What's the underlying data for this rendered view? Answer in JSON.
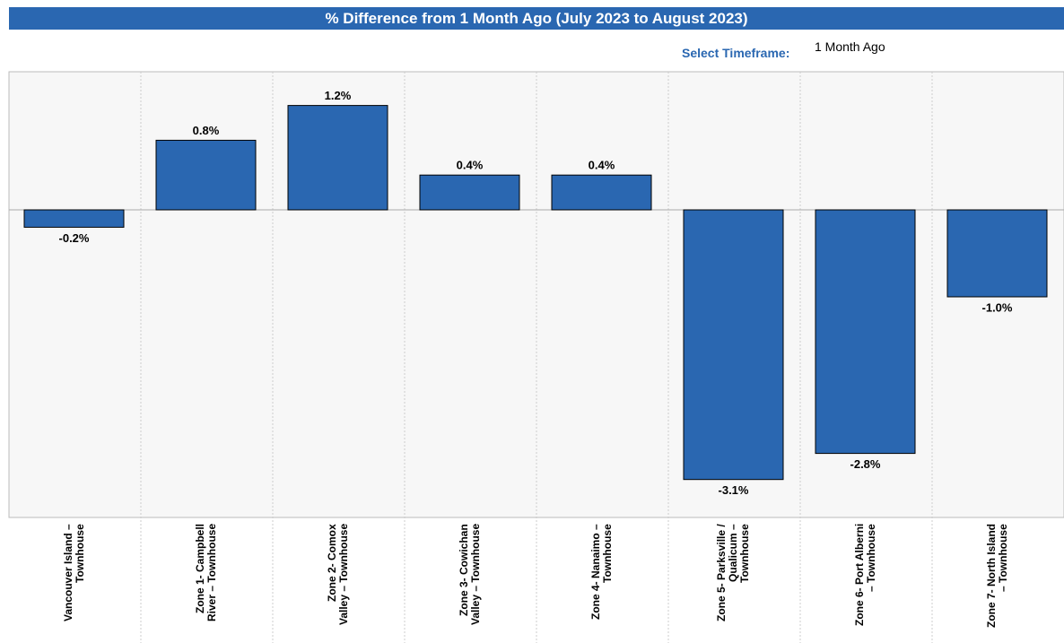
{
  "chart_data": {
    "type": "bar",
    "title": "% Difference from 1 Month Ago (July 2023 to August 2023)",
    "control_label": "Select Timeframe:",
    "control_value": "1 Month Ago",
    "categories": [
      "Vancouver Island – Townhouse",
      "Zone 1- Campbell River – Townhouse",
      "Zone 2- Comox Valley – Townhouse",
      "Zone 3- Cowichan Valley – Townhouse",
      "Zone 4- Nanaimo – Townhouse",
      "Zone 5- Parksville / Qualicum – Townhouse",
      "Zone 6- Port Alberni – Townhouse",
      "Zone 7- North Island – Townhouse"
    ],
    "values": [
      -0.2,
      0.8,
      1.2,
      0.4,
      0.4,
      -3.1,
      -2.8,
      -1.0
    ],
    "value_labels": [
      "-0.2%",
      "0.8%",
      "1.2%",
      "0.4%",
      "0.4%",
      "-3.1%",
      "-2.8%",
      "-1.0%"
    ],
    "color": "#2a67b1"
  }
}
